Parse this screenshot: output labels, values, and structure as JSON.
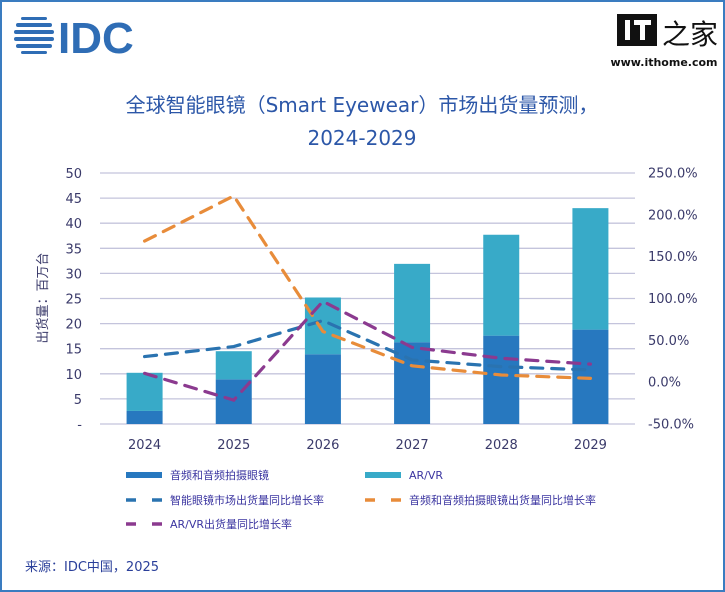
{
  "header": {
    "logo_text": "IDC",
    "watermark_text": "IT之家",
    "watermark_url": "www.ithome.com"
  },
  "chart_data": {
    "type": "bar",
    "title_line1": "全球智能眼镜（Smart Eyewear）市场出货量预测，",
    "title_line2": "2024-2029",
    "categories": [
      "2024",
      "2025",
      "2026",
      "2027",
      "2028",
      "2029"
    ],
    "ylabel": "出货量：百万台",
    "ylim": [
      0,
      50
    ],
    "y_ticks": [
      "-",
      "5",
      "10",
      "15",
      "20",
      "25",
      "30",
      "35",
      "40",
      "45",
      "50"
    ],
    "y2lim": [
      -50,
      250
    ],
    "y2_ticks": [
      "-50.0%",
      "0.0%",
      "50.0%",
      "100.0%",
      "150.0%",
      "200.0%",
      "250.0%"
    ],
    "grid": true,
    "legend_position": "bottom",
    "stacked": true,
    "bar_series": [
      {
        "name": "音频和音频拍摄眼镜",
        "color": "#2778bf",
        "values": [
          2.6,
          8.9,
          13.9,
          16.3,
          17.6,
          18.8
        ]
      },
      {
        "name": "AR/VR",
        "color": "#38aac8",
        "values": [
          7.6,
          5.6,
          11.3,
          15.6,
          20.1,
          24.2
        ]
      }
    ],
    "line_series": [
      {
        "name": "智能眼镜市场出货量同比增长率",
        "color": "#2a73b0",
        "axis": "right",
        "values": [
          30,
          42,
          73,
          26,
          18,
          14
        ]
      },
      {
        "name": "音频和音频拍摄眼镜出货量同比增长率",
        "color": "#e88c3a",
        "axis": "right",
        "values": [
          168,
          222,
          60,
          19,
          8,
          4
        ]
      },
      {
        "name": "AR/VR出货量同比增长率",
        "color": "#8b3a8f",
        "axis": "right",
        "values": [
          10,
          -22,
          96,
          41,
          28,
          21
        ]
      }
    ]
  },
  "footer": {
    "source": "来源：IDC中国，2025"
  }
}
